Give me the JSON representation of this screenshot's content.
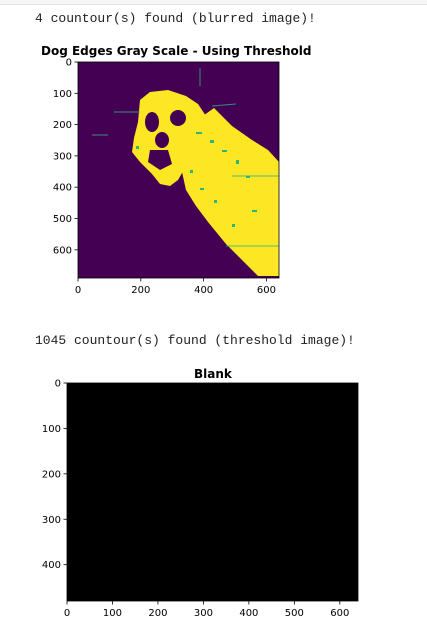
{
  "output_1": "4 countour(s) found (blurred image)!",
  "output_2": "1045 countour(s) found (threshold image)!",
  "figure_1": {
    "title": "Dog Edges Gray Scale - Using Threshold",
    "colors": {
      "background": "#440154",
      "foreground": "#fde725",
      "mid": "#2fb47c"
    },
    "x_ticks": [
      "0",
      "200",
      "400",
      "600"
    ],
    "y_ticks": [
      "0",
      "100",
      "200",
      "300",
      "400",
      "500",
      "600"
    ]
  },
  "figure_2": {
    "title": "Blank",
    "colors": {
      "background": "#000000"
    },
    "x_ticks": [
      "0",
      "100",
      "200",
      "300",
      "400",
      "500",
      "600"
    ],
    "y_ticks": [
      "0",
      "100",
      "200",
      "300",
      "400"
    ]
  }
}
